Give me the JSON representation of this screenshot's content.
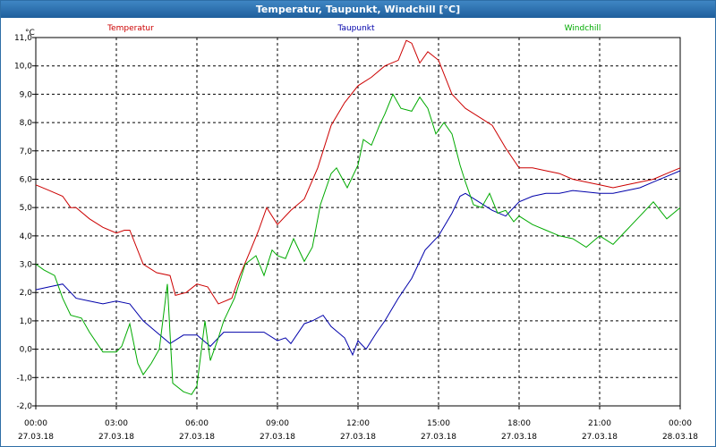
{
  "window": {
    "title": "Temperatur, Taupunkt, Windchill [°C]"
  },
  "chart_data": {
    "type": "line",
    "title": "Temperatur, Taupunkt, Windchill [°C]",
    "yunit": "°C",
    "ylim": [
      -2.0,
      11.0
    ],
    "yticks": [
      "11,0",
      "10,0",
      "9,0",
      "8,0",
      "7,0",
      "6,0",
      "5,0",
      "4,0",
      "3,0",
      "2,0",
      "1,0",
      "0,0",
      "-1,0",
      "-2,0"
    ],
    "xlim": [
      0,
      24
    ],
    "xticks": [
      {
        "time": "00:00",
        "date": "27.03.18"
      },
      {
        "time": "03:00",
        "date": "27.03.18"
      },
      {
        "time": "06:00",
        "date": "27.03.18"
      },
      {
        "time": "09:00",
        "date": "27.03.18"
      },
      {
        "time": "12:00",
        "date": "27.03.18"
      },
      {
        "time": "15:00",
        "date": "27.03.18"
      },
      {
        "time": "18:00",
        "date": "27.03.18"
      },
      {
        "time": "21:00",
        "date": "27.03.18"
      },
      {
        "time": "00:00",
        "date": "28.03.18"
      }
    ],
    "grid": true,
    "series": [
      {
        "name": "Temperatur",
        "color": "#cc0000",
        "x": [
          0,
          0.5,
          1,
          1.3,
          1.5,
          2,
          2.5,
          3,
          3.3,
          3.5,
          4,
          4.5,
          5,
          5.2,
          5.6,
          6,
          6.4,
          6.8,
          7.3,
          7.6,
          8,
          8.3,
          8.6,
          9,
          9.5,
          10,
          10.5,
          11,
          11.5,
          12,
          12.5,
          13,
          13.5,
          13.8,
          14,
          14.3,
          14.6,
          15,
          15.5,
          16,
          16.5,
          17,
          17.5,
          18,
          18.5,
          19,
          19.5,
          20,
          20.5,
          21,
          21.5,
          22,
          22.5,
          23,
          23.5,
          24
        ],
        "y": [
          5.8,
          5.6,
          5.4,
          5.0,
          5.0,
          4.6,
          4.3,
          4.1,
          4.2,
          4.2,
          3.0,
          2.7,
          2.6,
          1.9,
          2.0,
          2.3,
          2.2,
          1.6,
          1.8,
          2.6,
          3.5,
          4.2,
          5.0,
          4.4,
          4.9,
          5.3,
          6.4,
          7.9,
          8.7,
          9.3,
          9.6,
          10.0,
          10.2,
          10.9,
          10.8,
          10.1,
          10.5,
          10.2,
          9.0,
          8.5,
          8.2,
          7.9,
          7.1,
          6.4,
          6.4,
          6.3,
          6.2,
          6.0,
          5.9,
          5.8,
          5.7,
          5.8,
          5.9,
          6.0,
          6.2,
          6.4
        ]
      },
      {
        "name": "Taupunkt",
        "color": "#0000aa",
        "x": [
          0,
          0.5,
          1,
          1.5,
          2,
          2.5,
          3,
          3.5,
          4,
          4.5,
          5,
          5.5,
          6,
          6.5,
          6.8,
          7,
          7.5,
          8,
          8.5,
          9,
          9.3,
          9.5,
          10,
          10.3,
          10.7,
          11,
          11.5,
          11.8,
          12,
          12.3,
          12.7,
          13,
          13.5,
          14,
          14.5,
          15,
          15.5,
          15.8,
          16,
          16.5,
          17,
          17.5,
          18,
          18.5,
          19,
          19.5,
          20,
          21,
          21.5,
          22,
          22.5,
          23,
          23.5,
          24
        ],
        "y": [
          2.1,
          2.2,
          2.3,
          1.8,
          1.7,
          1.6,
          1.7,
          1.6,
          1.0,
          0.6,
          0.2,
          0.5,
          0.5,
          0.1,
          0.4,
          0.6,
          0.6,
          0.6,
          0.6,
          0.3,
          0.4,
          0.2,
          0.9,
          1.0,
          1.2,
          0.8,
          0.4,
          -0.2,
          0.3,
          0.0,
          0.6,
          1.0,
          1.8,
          2.5,
          3.5,
          4.0,
          4.8,
          5.4,
          5.5,
          5.2,
          4.9,
          4.7,
          5.2,
          5.4,
          5.5,
          5.5,
          5.6,
          5.5,
          5.5,
          5.6,
          5.7,
          5.9,
          6.1,
          6.3
        ]
      },
      {
        "name": "Windchill",
        "color": "#00aa00",
        "x": [
          0,
          0.3,
          0.7,
          1,
          1.3,
          1.7,
          2,
          2.5,
          3,
          3.2,
          3.5,
          3.8,
          4,
          4.3,
          4.6,
          4.9,
          5.1,
          5.5,
          5.8,
          6,
          6.3,
          6.5,
          6.8,
          7,
          7.4,
          7.8,
          8.2,
          8.5,
          8.8,
          9,
          9.3,
          9.6,
          10,
          10.3,
          10.6,
          11,
          11.2,
          11.6,
          12,
          12.2,
          12.5,
          12.8,
          13,
          13.3,
          13.6,
          14,
          14.3,
          14.6,
          14.9,
          15.2,
          15.5,
          15.8,
          16,
          16.3,
          16.6,
          16.9,
          17.2,
          17.5,
          17.8,
          18,
          18.5,
          19,
          19.5,
          20,
          20.5,
          21,
          21.5,
          22,
          22.5,
          23,
          23.5,
          24
        ],
        "y": [
          3.0,
          2.8,
          2.6,
          1.8,
          1.2,
          1.1,
          0.6,
          -0.1,
          -0.1,
          0.1,
          0.9,
          -0.5,
          -0.9,
          -0.5,
          0.0,
          2.3,
          -1.2,
          -1.5,
          -1.6,
          -1.3,
          1.0,
          -0.4,
          0.4,
          1.0,
          1.8,
          3.0,
          3.3,
          2.6,
          3.5,
          3.3,
          3.2,
          3.9,
          3.1,
          3.6,
          5.1,
          6.2,
          6.4,
          5.7,
          6.5,
          7.4,
          7.2,
          7.9,
          8.3,
          9.0,
          8.5,
          8.4,
          8.9,
          8.5,
          7.6,
          8.0,
          7.6,
          6.5,
          5.9,
          5.1,
          5.0,
          5.5,
          4.8,
          4.9,
          4.5,
          4.7,
          4.4,
          4.2,
          4.0,
          3.9,
          3.6,
          4.0,
          3.7,
          4.2,
          4.7,
          5.2,
          4.6,
          5.0
        ]
      }
    ]
  }
}
